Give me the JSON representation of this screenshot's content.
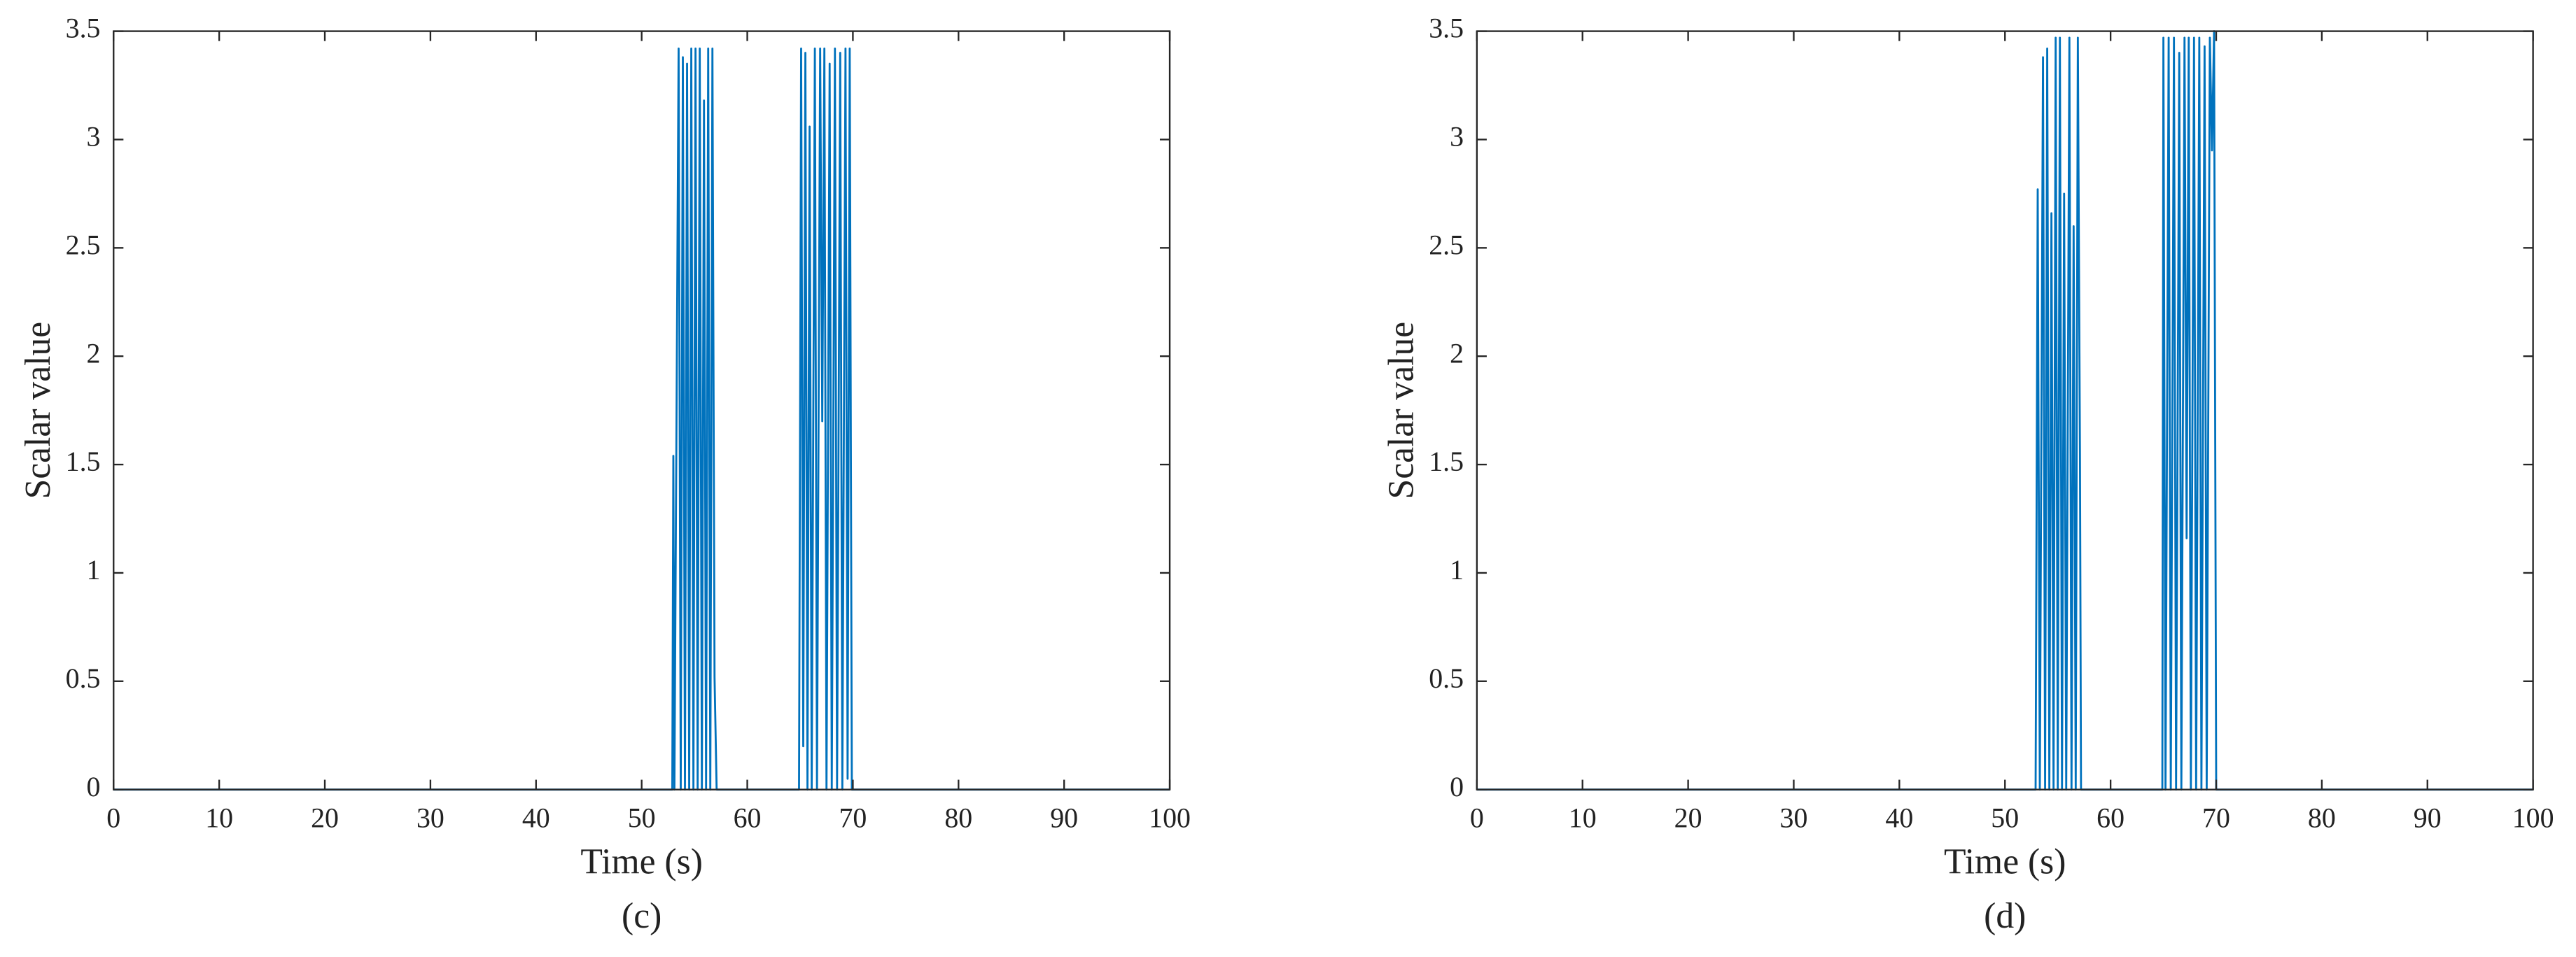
{
  "chart_data": [
    {
      "type": "line",
      "caption": "(c)",
      "x_label": "Time (s)",
      "y_label": "Scalar value",
      "color": "#0072bd",
      "grid": false,
      "x": [
        0,
        52.9,
        53.0,
        53.1,
        53.5,
        53.7,
        53.9,
        54.1,
        54.3,
        54.5,
        54.7,
        54.9,
        55.1,
        55.3,
        55.5,
        55.7,
        55.9,
        56.1,
        56.3,
        56.5,
        56.7,
        56.9,
        57.1,
        64.9,
        65.1,
        65.3,
        65.5,
        65.7,
        65.9,
        66.1,
        66.4,
        66.6,
        66.9,
        67.1,
        67.3,
        67.5,
        67.8,
        68.0,
        68.3,
        68.5,
        68.8,
        69.0,
        69.3,
        69.5,
        69.7,
        69.9,
        100
      ],
      "values": [
        0,
        0,
        1.54,
        0,
        3.42,
        0,
        3.38,
        0,
        3.35,
        0,
        3.42,
        0,
        3.42,
        0,
        3.42,
        0,
        3.18,
        0,
        3.42,
        0,
        3.42,
        0.52,
        0,
        0,
        3.42,
        0.2,
        3.4,
        0,
        3.06,
        0,
        3.42,
        0,
        3.42,
        1.7,
        3.42,
        0,
        3.35,
        0,
        3.42,
        0,
        3.4,
        0,
        3.42,
        0.05,
        3.42,
        0,
        0
      ],
      "xlim": [
        0,
        100
      ],
      "xticks": [
        0,
        10,
        20,
        30,
        40,
        50,
        60,
        70,
        80,
        90,
        100
      ],
      "ylim": [
        0,
        3.5
      ],
      "yticks": [
        0,
        0.5,
        1,
        1.5,
        2,
        2.5,
        3,
        3.5
      ]
    },
    {
      "type": "line",
      "caption": "(d)",
      "x_label": "Time (s)",
      "y_label": "Scalar value",
      "color": "#0072bd",
      "grid": false,
      "x": [
        0,
        52.9,
        53.1,
        53.3,
        53.6,
        53.8,
        54.0,
        54.2,
        54.4,
        54.6,
        54.8,
        55.0,
        55.2,
        55.4,
        55.6,
        55.8,
        56.1,
        56.3,
        56.5,
        56.7,
        56.9,
        57.1,
        57.2,
        64.9,
        65.0,
        65.2,
        65.5,
        65.7,
        66.0,
        66.2,
        66.5,
        66.7,
        67.0,
        67.2,
        67.4,
        67.6,
        67.9,
        68.1,
        68.4,
        68.6,
        68.9,
        69.1,
        69.4,
        69.6,
        69.8,
        70.0,
        100
      ],
      "values": [
        0,
        0,
        2.77,
        0,
        3.38,
        0,
        3.42,
        0,
        2.66,
        0,
        3.47,
        0,
        3.47,
        0,
        2.75,
        0,
        3.47,
        0,
        2.6,
        0,
        3.47,
        1.55,
        0,
        0,
        3.47,
        0,
        3.47,
        0,
        3.47,
        0,
        3.4,
        0,
        3.47,
        1.16,
        3.47,
        0,
        3.47,
        0,
        3.47,
        0,
        3.43,
        0,
        3.47,
        2.95,
        3.5,
        0,
        0
      ],
      "xlim": [
        0,
        100
      ],
      "xticks": [
        0,
        10,
        20,
        30,
        40,
        50,
        60,
        70,
        80,
        90,
        100
      ],
      "ylim": [
        0,
        3.5
      ],
      "yticks": [
        0,
        0.5,
        1,
        1.5,
        2,
        2.5,
        3,
        3.5
      ]
    }
  ]
}
